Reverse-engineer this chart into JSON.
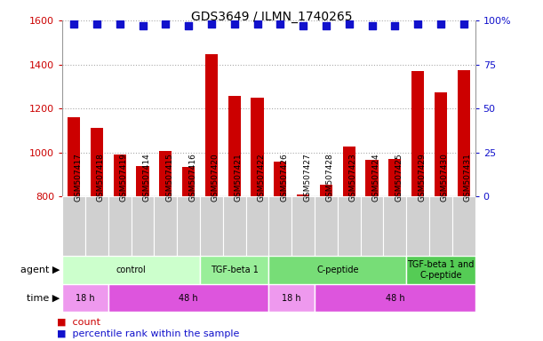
{
  "title": "GDS3649 / ILMN_1740265",
  "samples": [
    "GSM507417",
    "GSM507418",
    "GSM507419",
    "GSM507414",
    "GSM507415",
    "GSM507416",
    "GSM507420",
    "GSM507421",
    "GSM507422",
    "GSM507426",
    "GSM507427",
    "GSM507428",
    "GSM507423",
    "GSM507424",
    "GSM507425",
    "GSM507429",
    "GSM507430",
    "GSM507431"
  ],
  "counts": [
    1160,
    1110,
    990,
    940,
    1005,
    935,
    1445,
    1255,
    1250,
    960,
    808,
    855,
    1025,
    965,
    970,
    1370,
    1275,
    1375
  ],
  "percentile_ranks": [
    98,
    98,
    98,
    97,
    98,
    97,
    98,
    98,
    98,
    98,
    97,
    97,
    98,
    97,
    97,
    98,
    98,
    98
  ],
  "bar_color": "#cc0000",
  "dot_color": "#1111cc",
  "ylim_left": [
    800,
    1600
  ],
  "ylim_right": [
    0,
    100
  ],
  "yticks_left": [
    800,
    1000,
    1200,
    1400,
    1600
  ],
  "yticks_right": [
    0,
    25,
    50,
    75,
    100
  ],
  "agent_labels": [
    {
      "label": "control",
      "start": 0,
      "end": 6,
      "color": "#ccffcc"
    },
    {
      "label": "TGF-beta 1",
      "start": 6,
      "end": 9,
      "color": "#99ee99"
    },
    {
      "label": "C-peptide",
      "start": 9,
      "end": 15,
      "color": "#77dd77"
    },
    {
      "label": "TGF-beta 1 and\nC-peptide",
      "start": 15,
      "end": 18,
      "color": "#55cc55"
    }
  ],
  "time_labels": [
    {
      "label": "18 h",
      "start": 0,
      "end": 2,
      "color": "#ee99ee"
    },
    {
      "label": "48 h",
      "start": 2,
      "end": 9,
      "color": "#dd55dd"
    },
    {
      "label": "18 h",
      "start": 9,
      "end": 11,
      "color": "#ee99ee"
    },
    {
      "label": "48 h",
      "start": 11,
      "end": 18,
      "color": "#dd55dd"
    }
  ],
  "legend_count_color": "#cc0000",
  "legend_dot_color": "#1111cc",
  "grid_color": "#aaaaaa",
  "tick_color_left": "#cc0000",
  "tick_color_right": "#1111cc",
  "bar_width": 0.55,
  "dot_size": 40,
  "dot_marker": "s",
  "xtick_bg": "#d0d0d0",
  "label_fontsize": 8,
  "tick_fontsize": 8,
  "sample_fontsize": 6.5,
  "title_fontsize": 10
}
